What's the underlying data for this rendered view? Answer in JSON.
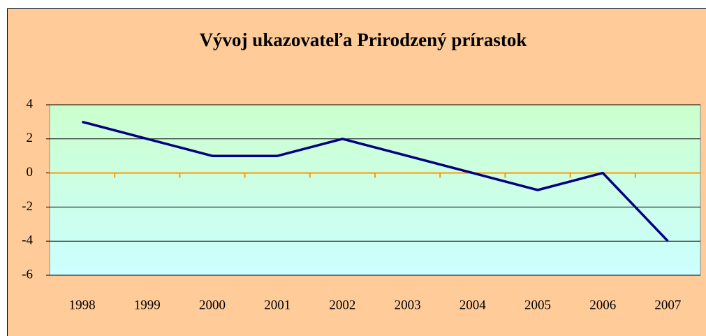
{
  "chart_data": {
    "type": "line",
    "title": "Vývoj ukazovateľa Prirodzený prírastok",
    "categories": [
      "1998",
      "1999",
      "2000",
      "2001",
      "2002",
      "2003",
      "2004",
      "2005",
      "2006",
      "2007"
    ],
    "values": [
      3,
      2,
      1,
      1,
      2,
      1,
      0,
      -1,
      0,
      -4
    ],
    "color": "#000080",
    "ylim": [
      -6,
      4
    ],
    "yticks": [
      -6,
      -4,
      -2,
      0,
      2,
      4
    ],
    "grid": true
  }
}
